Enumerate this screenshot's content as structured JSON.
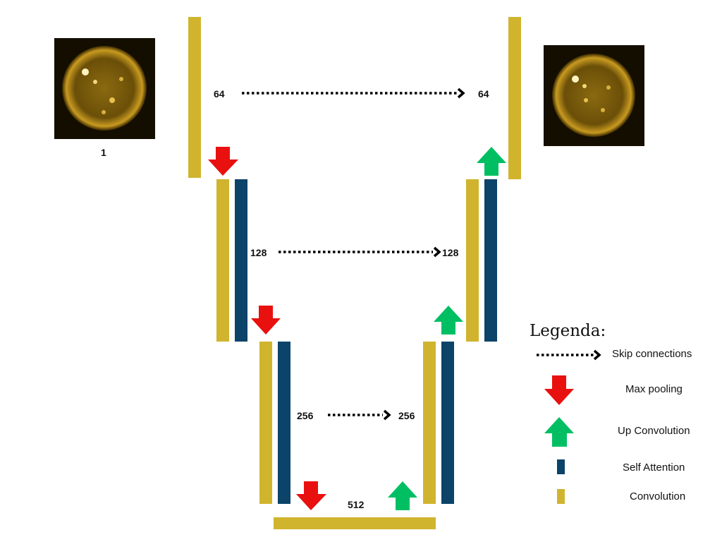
{
  "colors": {
    "convolution": "#D0B42E",
    "self_attention": "#0B4369",
    "max_pooling": "#E8110F",
    "up_convolution": "#00BF63",
    "skip": "#000000"
  },
  "images": {
    "input_label": "1",
    "input_icon": "sun-image",
    "output_icon": "sun-image"
  },
  "levels": [
    {
      "left_label": "64",
      "right_label": "64"
    },
    {
      "left_label": "128",
      "right_label": "128"
    },
    {
      "left_label": "256",
      "right_label": "256"
    }
  ],
  "bottleneck_label": "512",
  "legend": {
    "title": "Legenda:",
    "items": [
      {
        "label": "Skip connections",
        "icon": "dotted-arrow-icon"
      },
      {
        "label": "Max pooling",
        "icon": "red-down-arrow-icon"
      },
      {
        "label": "Up Convolution",
        "icon": "green-up-arrow-icon"
      },
      {
        "label": "Self Attention",
        "icon": "navy-bar-icon"
      },
      {
        "label": "Convolution",
        "icon": "gold-bar-icon"
      }
    ]
  }
}
